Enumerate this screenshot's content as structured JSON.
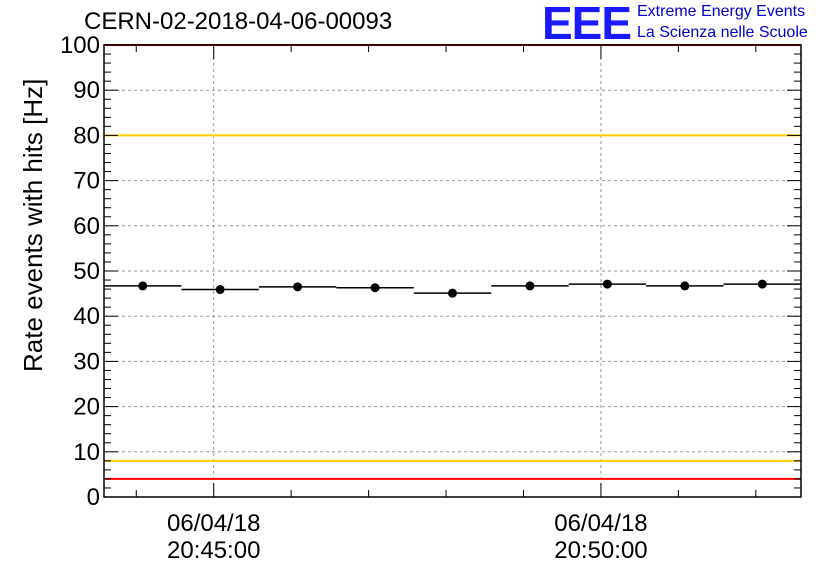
{
  "header": {
    "title": "CERN-02-2018-04-06-00093",
    "logo_text": "EEE",
    "logo_line1": "Extreme Energy Events",
    "logo_line2": "La Scienza nelle Scuole"
  },
  "chart_data": {
    "type": "scatter",
    "title": "CERN-02-2018-04-06-00093",
    "ylabel": "Rate events with hits [Hz]",
    "xlabel": "",
    "ylim": [
      0,
      100
    ],
    "xlim": [
      "20:43:35",
      "20:52:35"
    ],
    "yticks": [
      "0",
      "10",
      "20",
      "30",
      "40",
      "50",
      "60",
      "70",
      "80",
      "90",
      "100"
    ],
    "xticks": [
      {
        "date": "06/04/18",
        "time": "20:45:00",
        "x": "20:45:00"
      },
      {
        "date": "06/04/18",
        "time": "20:50:00",
        "x": "20:50:00"
      }
    ],
    "grid": true,
    "series": [
      {
        "x": [
          "20:44:05",
          "20:45:05",
          "20:46:05",
          "20:47:05",
          "20:48:05",
          "20:49:05",
          "20:50:05",
          "20:51:05",
          "20:52:05"
        ],
        "y": [
          46.7,
          45.9,
          46.5,
          46.3,
          45.1,
          46.7,
          47.1,
          46.7,
          47.1
        ],
        "bin_half_width_seconds": 30,
        "color": "#000000"
      }
    ],
    "reference_lines": [
      {
        "y": 100,
        "color": "#ff0000"
      },
      {
        "y": 80,
        "color": "#ffcc00"
      },
      {
        "y": 8,
        "color": "#ffcc00"
      },
      {
        "y": 4,
        "color": "#ff0000"
      }
    ]
  }
}
